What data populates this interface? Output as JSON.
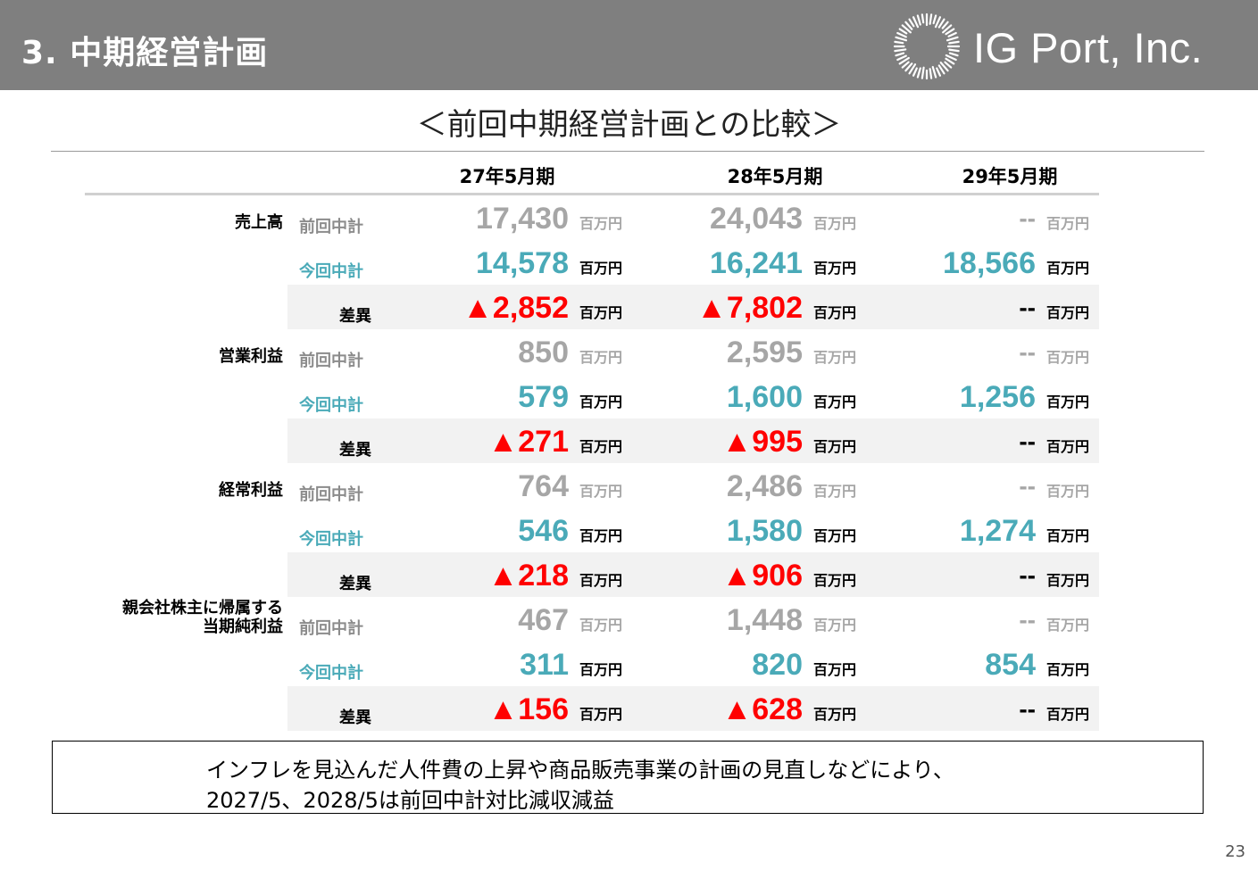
{
  "header": {
    "title": "3. 中期経営計画",
    "company": "IG Port, Inc."
  },
  "subtitle": "＜前回中期経営計画との比較＞",
  "columns": [
    "27年5月期",
    "28年5月期",
    "29年5月期"
  ],
  "unit": "百万円",
  "row_labels": {
    "prev": "前回中計",
    "cur": "今回中計",
    "diff": "差異"
  },
  "metrics": [
    {
      "name": "売上高",
      "prev": [
        "17,430",
        "24,043",
        "--"
      ],
      "cur": [
        "14,578",
        "16,241",
        "18,566"
      ],
      "diff": [
        "▲2,852",
        "▲7,802",
        "--"
      ]
    },
    {
      "name": "営業利益",
      "prev": [
        "850",
        "2,595",
        "--"
      ],
      "cur": [
        "579",
        "1,600",
        "1,256"
      ],
      "diff": [
        "▲271",
        "▲995",
        "--"
      ]
    },
    {
      "name": "経常利益",
      "prev": [
        "764",
        "2,486",
        "--"
      ],
      "cur": [
        "546",
        "1,580",
        "1,274"
      ],
      "diff": [
        "▲218",
        "▲906",
        "--"
      ]
    },
    {
      "name_line1": "親会社株主に帰属する",
      "name_line2": "当期純利益",
      "prev": [
        "467",
        "1,448",
        "--"
      ],
      "cur": [
        "311",
        "820",
        "854"
      ],
      "diff": [
        "▲156",
        "▲628",
        "--"
      ]
    }
  ],
  "note": {
    "line1": "インフレを見込んだ人件費の上昇や商品販売事業の計画の見直しなどにより、",
    "line2": "2027/5、2028/5は前回中計対比減収減益"
  },
  "page_number": "23",
  "colors": {
    "header_bg": "#7f7f7f",
    "current_plan": "#4aaab8",
    "previous_plan": "#a6a6a6",
    "difference": "#ff0000",
    "band": "#f2f2f2"
  }
}
